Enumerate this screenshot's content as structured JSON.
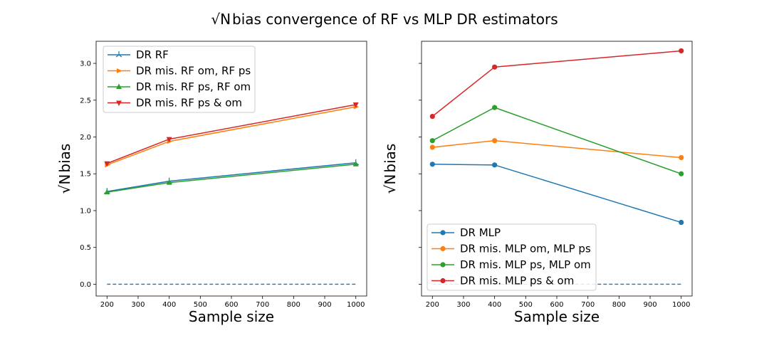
{
  "figure": {
    "title_prefix": "√N",
    "title_rest": "bias convergence of RF vs MLP DR estimators"
  },
  "chart_data": [
    {
      "type": "line",
      "xlabel": "Sample size",
      "ylabel_prefix": "√N",
      "ylabel_rest": "bias",
      "x": [
        200,
        400,
        1000
      ],
      "xlim": [
        165,
        1035
      ],
      "ylim": [
        -0.16,
        3.3
      ],
      "xticks": [
        "200",
        "300",
        "400",
        "500",
        "600",
        "700",
        "800",
        "900",
        "1000"
      ],
      "yticks": [
        "0.0",
        "0.5",
        "1.0",
        "1.5",
        "2.0",
        "2.5",
        "3.0"
      ],
      "legend_position": "upper-left",
      "series": [
        {
          "name": "DR RF",
          "values": [
            1.26,
            1.4,
            1.65
          ],
          "color": "#1f77b4",
          "marker": "tri_down"
        },
        {
          "name": "DR mis. RF om, RF ps",
          "values": [
            1.62,
            1.94,
            2.41
          ],
          "color": "#ff7f0e",
          "marker": "tri_right"
        },
        {
          "name": "DR mis. RF ps, RF om",
          "values": [
            1.25,
            1.38,
            1.63
          ],
          "color": "#2ca02c",
          "marker": "triangle_up"
        },
        {
          "name": "DR mis. RF ps & om",
          "values": [
            1.64,
            1.97,
            2.44
          ],
          "color": "#d62728",
          "marker": "triangle_down"
        }
      ],
      "reference_line": {
        "y": 0.0,
        "color": "#1f77b4",
        "style": "dashed"
      }
    },
    {
      "type": "line",
      "xlabel": "Sample size",
      "ylabel_prefix": "√N",
      "ylabel_rest": "bias",
      "x": [
        200,
        400,
        1000
      ],
      "xlim": [
        165,
        1035
      ],
      "ylim": [
        -0.16,
        3.3
      ],
      "xticks": [
        "200",
        "300",
        "400",
        "500",
        "600",
        "700",
        "800",
        "900",
        "1000"
      ],
      "yticks": [],
      "legend_position": "lower-left",
      "series": [
        {
          "name": "DR MLP",
          "values": [
            1.63,
            1.62,
            0.84
          ],
          "color": "#1f77b4",
          "marker": "circle"
        },
        {
          "name": "DR mis. MLP om, MLP ps",
          "values": [
            1.86,
            1.95,
            1.72
          ],
          "color": "#ff7f0e",
          "marker": "circle"
        },
        {
          "name": "DR mis. MLP ps, MLP om",
          "values": [
            1.95,
            2.4,
            1.5
          ],
          "color": "#2ca02c",
          "marker": "circle"
        },
        {
          "name": "DR mis. MLP ps & om",
          "values": [
            2.28,
            2.95,
            3.17
          ],
          "color": "#d62728",
          "marker": "circle"
        }
      ],
      "reference_line": {
        "y": 0.0,
        "color": "#1f77b4",
        "style": "dashed"
      }
    }
  ]
}
